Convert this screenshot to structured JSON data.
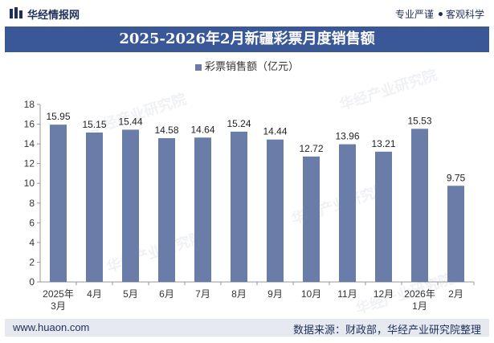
{
  "header": {
    "brand": "华经情报网",
    "tagline_left": "专业严谨",
    "tagline_right": "客观科学"
  },
  "watermark": "华经产业研究院",
  "footer": {
    "site": "www.huaon.com",
    "source": "数据来源：财政部，华经产业研究院整理"
  },
  "colors": {
    "bar": "#6a7ca8",
    "title_band": "#3a5898",
    "footer_band": "#e6e9f0",
    "brand_text": "#1e2f5a"
  },
  "icons": [
    "logo-icon"
  ],
  "chart_data": {
    "type": "bar",
    "title": "2025-2026年2月新疆彩票月度销售额",
    "xlabel": "",
    "ylabel": "",
    "categories": [
      "2025年3月",
      "4月",
      "5月",
      "6月",
      "7月",
      "8月",
      "9月",
      "10月",
      "11月",
      "12月",
      "2026年1月",
      "2月"
    ],
    "series": [
      {
        "name": "彩票销售额（亿元）",
        "values": [
          15.95,
          15.15,
          15.44,
          14.58,
          14.64,
          15.24,
          14.44,
          12.72,
          13.96,
          13.21,
          15.53,
          9.75
        ]
      }
    ],
    "value_labels": [
      "15.95",
      "15.15",
      "15.44",
      "14.58",
      "14.64",
      "15.24",
      "14.44",
      "12.72",
      "13.96",
      "13.21",
      "15.53",
      "9.75"
    ],
    "ylim": [
      0,
      18
    ],
    "yticks": [
      "0",
      "2",
      "4",
      "6",
      "8",
      "10",
      "12",
      "14",
      "16",
      "18"
    ],
    "grid": false,
    "legend_position": "top-center"
  }
}
